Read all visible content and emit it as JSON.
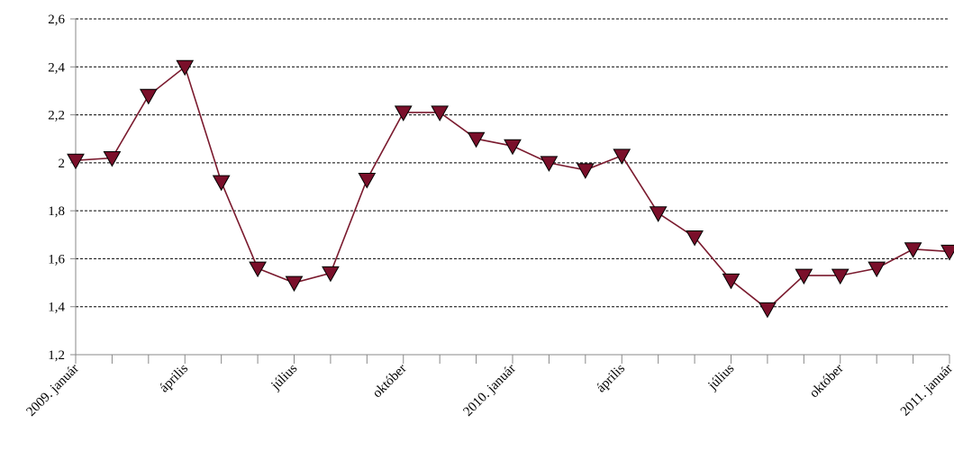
{
  "chart_data": {
    "type": "line",
    "title": "",
    "xlabel": "",
    "ylabel": "",
    "ylim": [
      1.2,
      2.6
    ],
    "yticks": [
      "1,2",
      "1,4",
      "1,6",
      "1,8",
      "2",
      "2,2",
      "2,4",
      "2,6"
    ],
    "grid": true,
    "legend": "none",
    "x_labels": [
      {
        "index": 0,
        "label": "2009. január"
      },
      {
        "index": 3,
        "label": "április"
      },
      {
        "index": 6,
        "label": "július"
      },
      {
        "index": 9,
        "label": "október"
      },
      {
        "index": 12,
        "label": "2010. január"
      },
      {
        "index": 15,
        "label": "április"
      },
      {
        "index": 18,
        "label": "július"
      },
      {
        "index": 21,
        "label": "október"
      },
      {
        "index": 24,
        "label": "2011. január"
      }
    ],
    "series": [
      {
        "color": "#7a0f2a",
        "line_color": "#7a1a2e",
        "marker": "triangle-down",
        "values": [
          2.01,
          2.02,
          2.28,
          2.4,
          1.92,
          1.56,
          1.5,
          1.54,
          1.93,
          2.21,
          2.21,
          2.1,
          2.07,
          2.0,
          1.97,
          2.03,
          1.79,
          1.69,
          1.51,
          1.39,
          1.53,
          1.53,
          1.56,
          1.64,
          1.63
        ]
      }
    ]
  }
}
